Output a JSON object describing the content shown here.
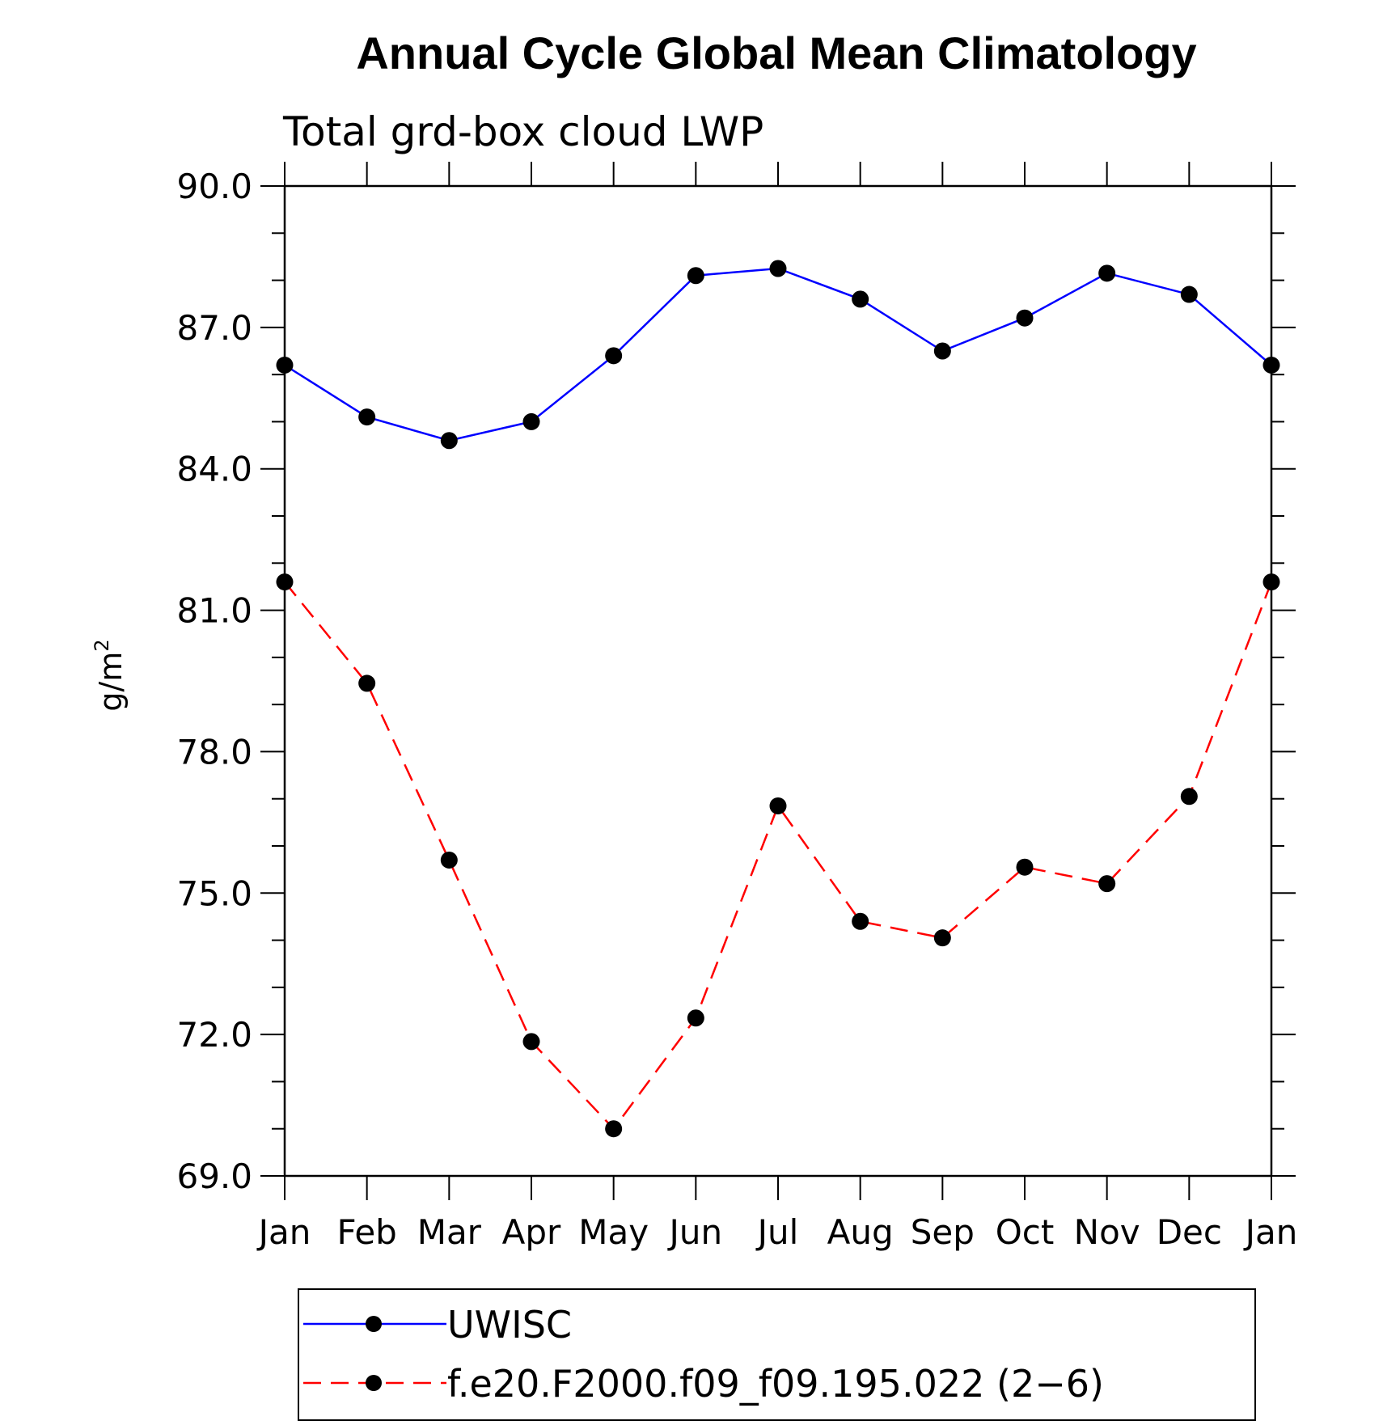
{
  "chart_data": {
    "type": "line",
    "title": "Annual Cycle Global Mean Climatology",
    "subtitle": "Total grd-box cloud LWP",
    "ylabel": "g/m",
    "ylabel_sup": "2",
    "xlabel": "",
    "categories": [
      "Jan",
      "Feb",
      "Mar",
      "Apr",
      "May",
      "Jun",
      "Jul",
      "Aug",
      "Sep",
      "Oct",
      "Nov",
      "Dec",
      "Jan"
    ],
    "ylim": [
      69.0,
      90.0
    ],
    "yticks": [
      "90.0",
      "87.0",
      "84.0",
      "81.0",
      "78.0",
      "75.0",
      "72.0",
      "69.0"
    ],
    "ytick_values": [
      90,
      87,
      84,
      81,
      78,
      75,
      72,
      69
    ],
    "grid": false,
    "legend_position": "bottom",
    "series": [
      {
        "name": "UWISC",
        "color": "#0000ff",
        "line_style": "solid",
        "marker": "filled-circle",
        "values": [
          86.2,
          85.1,
          84.6,
          85.0,
          86.4,
          88.1,
          88.25,
          87.6,
          86.5,
          87.2,
          88.15,
          87.7,
          86.2
        ]
      },
      {
        "name": "f.e20.F2000.f09_f09.195.022 (2−6)",
        "color": "#ff0000",
        "line_style": "dashed",
        "marker": "filled-circle",
        "values": [
          81.6,
          79.45,
          75.7,
          71.85,
          70.0,
          72.35,
          76.85,
          74.4,
          74.05,
          75.55,
          75.2,
          77.05,
          81.6
        ]
      }
    ]
  }
}
